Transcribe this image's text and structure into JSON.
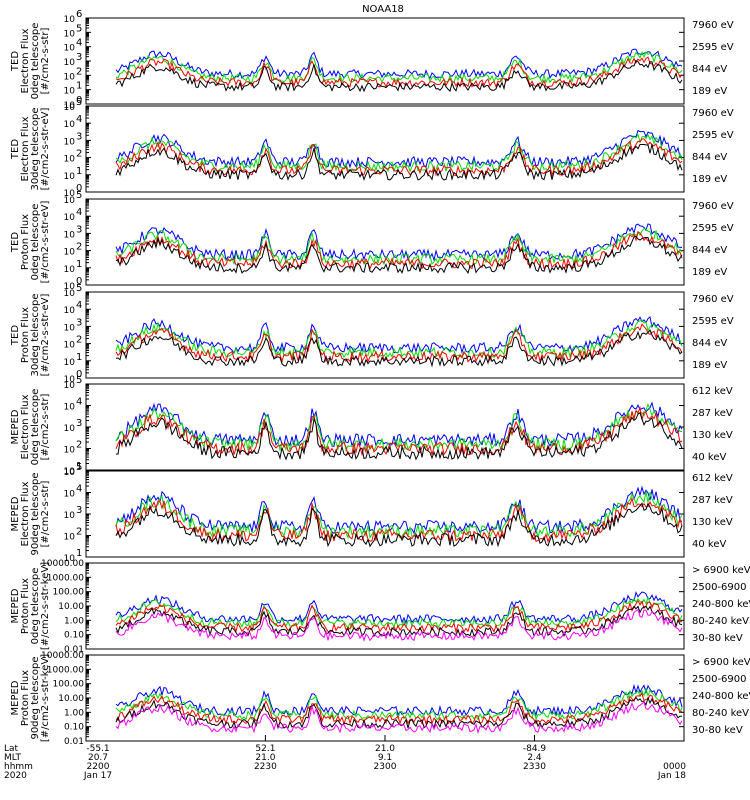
{
  "title": "NOAA18",
  "colors": {
    "blue": "#0000ff",
    "red": "#ff0000",
    "green": "#00e000",
    "black": "#000000",
    "magenta": "#ff00ff"
  },
  "chart_data": [
    {
      "type": "line",
      "panel": 1,
      "log": true,
      "ylim_exp": [
        0,
        6
      ],
      "ylabel": [
        "TED",
        "Electron Flux",
        "0deg telescope",
        "[#/cm2-s-str]"
      ],
      "legend": [
        {
          "name": "7960 eV",
          "color": "#000000"
        },
        {
          "name": "2595 eV",
          "color": "#ff0000"
        },
        {
          "name": "844 eV",
          "color": "#00e000"
        },
        {
          "name": "189 eV",
          "color": "#0000ff"
        }
      ]
    },
    {
      "type": "line",
      "panel": 2,
      "log": true,
      "ylim_exp": [
        0,
        5
      ],
      "ylabel": [
        "TED",
        "Electron Flux",
        "30deg telescope",
        "[#/cm2-s-str-eV]"
      ],
      "legend": [
        {
          "name": "7960 eV",
          "color": "#000000"
        },
        {
          "name": "2595 eV",
          "color": "#ff0000"
        },
        {
          "name": "844 eV",
          "color": "#00e000"
        },
        {
          "name": "189 eV",
          "color": "#0000ff"
        }
      ]
    },
    {
      "type": "line",
      "panel": 3,
      "log": true,
      "ylim_exp": [
        0,
        5
      ],
      "ylabel": [
        "TED",
        "Proton Flux",
        "0deg telescope",
        "[#/cm2-s-str-eV]"
      ],
      "legend": [
        {
          "name": "7960 eV",
          "color": "#000000"
        },
        {
          "name": "2595 eV",
          "color": "#ff0000"
        },
        {
          "name": "844 eV",
          "color": "#00e000"
        },
        {
          "name": "189 eV",
          "color": "#0000ff"
        }
      ]
    },
    {
      "type": "line",
      "panel": 4,
      "log": true,
      "ylim_exp": [
        0,
        5
      ],
      "ylabel": [
        "TED",
        "Proton Flux",
        "30deg telescope",
        "[#/cm2-s-str-eV]"
      ],
      "legend": [
        {
          "name": "7960 eV",
          "color": "#000000"
        },
        {
          "name": "2595 eV",
          "color": "#ff0000"
        },
        {
          "name": "844 eV",
          "color": "#00e000"
        },
        {
          "name": "189 eV",
          "color": "#0000ff"
        }
      ]
    },
    {
      "type": "line",
      "panel": 5,
      "log": true,
      "ylim_exp": [
        1,
        5
      ],
      "ylabel": [
        "MEPED",
        "Electron Flux",
        "0deg telescope",
        "[#/cm2-s-str]"
      ],
      "legend": [
        {
          "name": "612 keV",
          "color": "#000000"
        },
        {
          "name": "287 keV",
          "color": "#ff0000"
        },
        {
          "name": "130 keV",
          "color": "#00e000"
        },
        {
          "name": "40 keV",
          "color": "#0000ff"
        }
      ]
    },
    {
      "type": "line",
      "panel": 6,
      "log": true,
      "ylim_exp": [
        1,
        5
      ],
      "ylabel": [
        "MEPED",
        "Electron Flux",
        "90deg telescope",
        "[#/cm2-s-str]"
      ],
      "legend": [
        {
          "name": "612 keV",
          "color": "#000000"
        },
        {
          "name": "287 keV",
          "color": "#ff0000"
        },
        {
          "name": "130 keV",
          "color": "#00e000"
        },
        {
          "name": "40 keV",
          "color": "#0000ff"
        }
      ]
    },
    {
      "type": "line",
      "panel": 7,
      "log": true,
      "ylim_exp": [
        -2,
        4
      ],
      "ytick_labels": [
        "0.01",
        "0.10",
        "1.00",
        "10.00",
        "100.00",
        "1000.00",
        "10000.00"
      ],
      "ylabel": [
        "MEPED",
        "Proton Flux",
        "0deg telescope",
        "[#/cm2-s-str-keV]"
      ],
      "legend": [
        {
          "name": "> 6900 keV",
          "color": "#ff00ff"
        },
        {
          "name": "2500-6900",
          "color": "#000000"
        },
        {
          "name": "240-800 keV",
          "color": "#ff0000"
        },
        {
          "name": "80-240 keV",
          "color": "#00e000"
        },
        {
          "name": "30-80 keV",
          "color": "#0000ff"
        }
      ]
    },
    {
      "type": "line",
      "panel": 8,
      "log": true,
      "ylim_exp": [
        -2,
        4
      ],
      "ytick_labels": [
        "0.01",
        "0.10",
        "1.00",
        "10.00",
        "100.00",
        "1000.00",
        "10000.00"
      ],
      "ylabel": [
        "MEPED",
        "Proton Flux",
        "90deg telescope",
        "[#/cm2-s-str-keV]"
      ],
      "legend": [
        {
          "name": "> 6900 keV",
          "color": "#ff00ff"
        },
        {
          "name": "2500-6900",
          "color": "#000000"
        },
        {
          "name": "240-800 keV",
          "color": "#ff0000"
        },
        {
          "name": "80-240 keV",
          "color": "#00e000"
        },
        {
          "name": "30-80 keV",
          "color": "#0000ff"
        }
      ]
    }
  ],
  "x_axis": {
    "row_labels": [
      "Lat",
      "MLT",
      "hhmm",
      "2020"
    ],
    "ticks": [
      {
        "pos": 0,
        "values": [
          "-55.1",
          "20.7",
          "2200",
          "Jan 17"
        ]
      },
      {
        "pos": 0.3,
        "values": [
          "52.1",
          "21.0",
          "2230",
          ""
        ]
      },
      {
        "pos": 0.5,
        "values": [
          "21.0",
          "9.1",
          "2300",
          ""
        ]
      },
      {
        "pos": 0.75,
        "values": [
          "-84.9",
          "2.4",
          "2330",
          ""
        ]
      },
      {
        "pos": 1,
        "values": [
          "",
          "",
          "0000",
          "Jan 18"
        ]
      }
    ]
  }
}
